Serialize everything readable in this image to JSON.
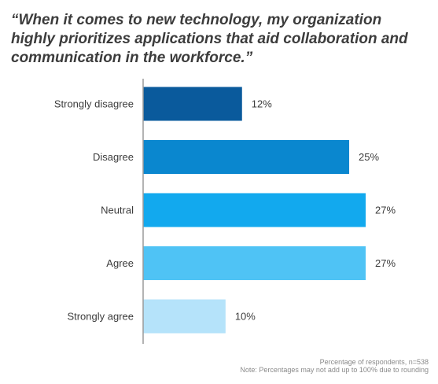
{
  "title": "“When it comes to new technology, my organization highly prioritizes applications that aid collaboration and communication in the workforce.”",
  "footnote": {
    "line1": "Percentage of respondents, n=538",
    "line2": "Note: Percentages may not add up to 100% due to rounding"
  },
  "colors": {
    "text": "#3c3c3c",
    "axis": "#9a9a9a",
    "bars": [
      "#0a5a9c",
      "#0a87cf",
      "#12a9ee",
      "#4fc3f5",
      "#b5e3fa"
    ]
  },
  "chart_data": {
    "type": "bar",
    "orientation": "horizontal",
    "categories": [
      "Strongly disagree",
      "Disagree",
      "Neutral",
      "Agree",
      "Strongly agree"
    ],
    "values": [
      12,
      25,
      27,
      27,
      10
    ],
    "value_labels": [
      "12%",
      "25%",
      "27%",
      "27%",
      "10%"
    ],
    "xlim": [
      0,
      27
    ],
    "grid": false,
    "legend": "none"
  }
}
